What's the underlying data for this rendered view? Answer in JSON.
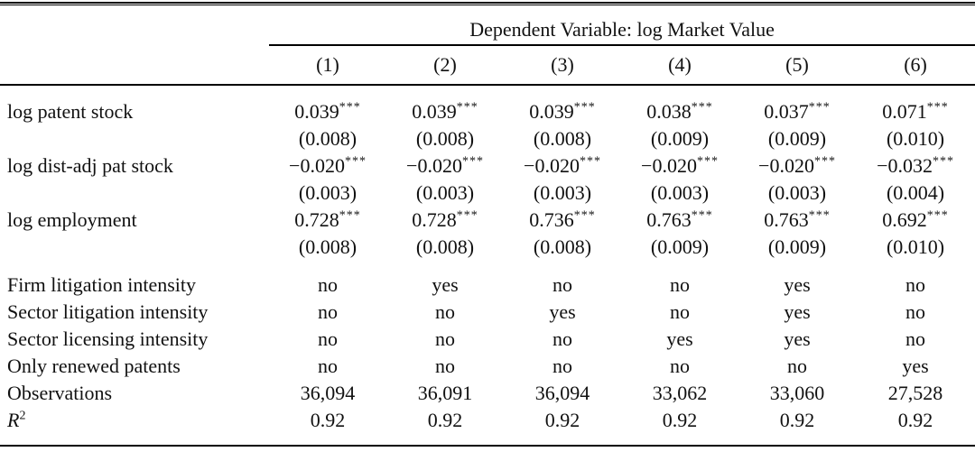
{
  "table": {
    "header": {
      "dependent_variable_label": "Dependent Variable: log Market Value",
      "columns": [
        "(1)",
        "(2)",
        "(3)",
        "(4)",
        "(5)",
        "(6)"
      ]
    },
    "coefficient_rows": [
      {
        "label": "log patent stock",
        "cells": [
          {
            "est": "0.039",
            "stars": "***",
            "se": "(0.008)"
          },
          {
            "est": "0.039",
            "stars": "***",
            "se": "(0.008)"
          },
          {
            "est": "0.039",
            "stars": "***",
            "se": "(0.008)"
          },
          {
            "est": "0.038",
            "stars": "***",
            "se": "(0.009)"
          },
          {
            "est": "0.037",
            "stars": "***",
            "se": "(0.009)"
          },
          {
            "est": "0.071",
            "stars": "***",
            "se": "(0.010)"
          }
        ]
      },
      {
        "label": "log dist-adj pat stock",
        "cells": [
          {
            "est": "−0.020",
            "stars": "***",
            "se": "(0.003)"
          },
          {
            "est": "−0.020",
            "stars": "***",
            "se": "(0.003)"
          },
          {
            "est": "−0.020",
            "stars": "***",
            "se": "(0.003)"
          },
          {
            "est": "−0.020",
            "stars": "***",
            "se": "(0.003)"
          },
          {
            "est": "−0.020",
            "stars": "***",
            "se": "(0.003)"
          },
          {
            "est": "−0.032",
            "stars": "***",
            "se": "(0.004)"
          }
        ]
      },
      {
        "label": "log employment",
        "cells": [
          {
            "est": "0.728",
            "stars": "***",
            "se": "(0.008)"
          },
          {
            "est": "0.728",
            "stars": "***",
            "se": "(0.008)"
          },
          {
            "est": "0.736",
            "stars": "***",
            "se": "(0.008)"
          },
          {
            "est": "0.763",
            "stars": "***",
            "se": "(0.009)"
          },
          {
            "est": "0.763",
            "stars": "***",
            "se": "(0.009)"
          },
          {
            "est": "0.692",
            "stars": "***",
            "se": "(0.010)"
          }
        ]
      }
    ],
    "toggle_rows": [
      {
        "label": "Firm litigation intensity",
        "values": [
          "no",
          "yes",
          "no",
          "no",
          "yes",
          "no"
        ]
      },
      {
        "label": "Sector litigation intensity",
        "values": [
          "no",
          "no",
          "yes",
          "no",
          "yes",
          "no"
        ]
      },
      {
        "label": "Sector licensing intensity",
        "values": [
          "no",
          "no",
          "no",
          "yes",
          "yes",
          "no"
        ]
      },
      {
        "label": "Only renewed patents",
        "values": [
          "no",
          "no",
          "no",
          "no",
          "no",
          "yes"
        ]
      }
    ],
    "stat_rows": [
      {
        "label": "Observations",
        "values": [
          "36,094",
          "36,091",
          "36,094",
          "33,062",
          "33,060",
          "27,528"
        ]
      },
      {
        "label": "R",
        "label_sup": "2",
        "values": [
          "0.92",
          "0.92",
          "0.92",
          "0.92",
          "0.92",
          "0.92"
        ]
      }
    ]
  }
}
